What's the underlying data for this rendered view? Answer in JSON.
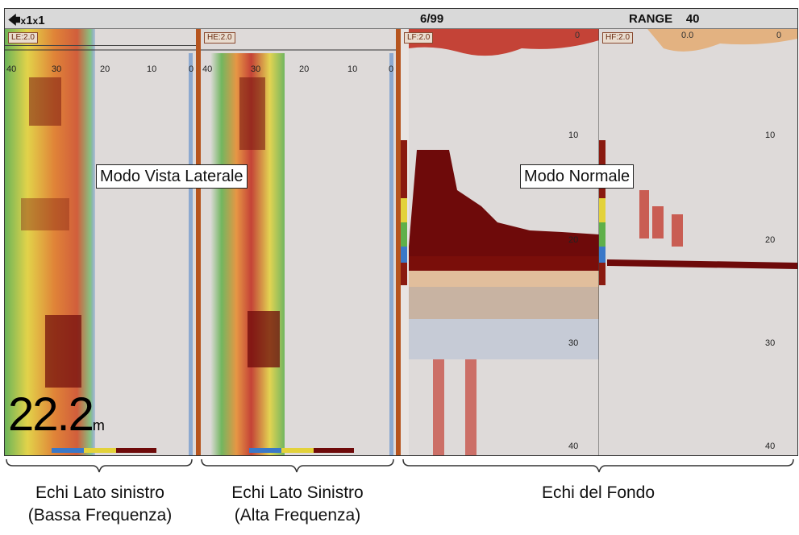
{
  "topbar": {
    "zoom_prefix": "x",
    "zoom_value1": "1",
    "zoom_sep": "x",
    "zoom_value2": "1",
    "page": "6/99",
    "range_label": "RANGE",
    "range_value": "40"
  },
  "panels": {
    "le": {
      "label": "LE:2.0",
      "scale": [
        "40",
        "30",
        "20",
        "10",
        "0"
      ]
    },
    "he": {
      "label": "HE:2.0",
      "scale": [
        "40",
        "30",
        "20",
        "10",
        "0"
      ]
    },
    "lf": {
      "label": "LF:2.0",
      "top_value": "0",
      "depths": [
        "10",
        "20",
        "30",
        "40"
      ]
    },
    "hf": {
      "label": "HF:2.0",
      "top_value": "0.0",
      "top_value2": "0",
      "depths": [
        "10",
        "20",
        "30",
        "40"
      ]
    }
  },
  "depth_readout": {
    "value": "22.2",
    "unit": "m"
  },
  "callouts": {
    "side_view": "Modo Vista Laterale",
    "normal": "Modo Normale"
  },
  "bottom_labels": {
    "left_low": [
      "Echi Lato sinistro",
      "(Bassa Frequenza)"
    ],
    "left_high": [
      "Echi Lato Sinistro",
      "(Alta Frequenza)"
    ],
    "bottom": "Echi del Fondo"
  },
  "colors": {
    "echo_dark": "#6e0a0a",
    "echo_red": "#c0281a",
    "echo_orange": "#e88a2a",
    "echo_yellow": "#e3d23a",
    "echo_green": "#5fb04a",
    "echo_blue": "#3a78c8",
    "background": "#dedad9"
  }
}
